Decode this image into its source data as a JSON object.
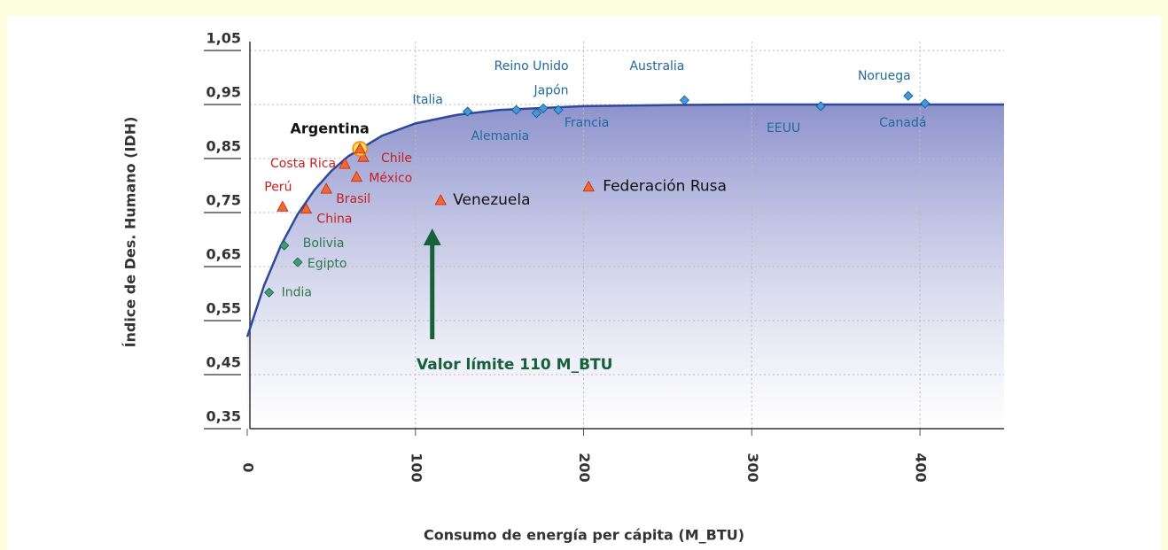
{
  "chart_data": {
    "type": "scatter",
    "xlabel": "Consumo de energía per cápita (M_BTU)",
    "ylabel": "Índice de Des. Humano (IDH)",
    "xlim": [
      0,
      450
    ],
    "ylim": [
      0.35,
      1.05
    ],
    "xticks": [
      0,
      100,
      200,
      300,
      400
    ],
    "yticks": [
      {
        "value": 0.35,
        "label": "0,35"
      },
      {
        "value": 0.45,
        "label": "0,45"
      },
      {
        "value": 0.55,
        "label": "0,55"
      },
      {
        "value": 0.65,
        "label": "0,65"
      },
      {
        "value": 0.75,
        "label": "0,75"
      },
      {
        "value": 0.85,
        "label": "0,85"
      },
      {
        "value": 0.95,
        "label": "0,95"
      },
      {
        "value": 1.05,
        "label": "1,05"
      }
    ],
    "grid": true,
    "curve": {
      "color": "#2e4a9c",
      "x": [
        0,
        10,
        20,
        30,
        40,
        50,
        60,
        80,
        100,
        125,
        150,
        200,
        250,
        300,
        450
      ],
      "values": [
        0.52,
        0.615,
        0.689,
        0.747,
        0.792,
        0.827,
        0.854,
        0.892,
        0.915,
        0.931,
        0.94,
        0.947,
        0.949,
        0.95,
        0.95
      ]
    },
    "series": [
      {
        "marker": "diamond",
        "color": "#3d9be0",
        "label_color": "#1f6a9a",
        "labels": [
          "Italia",
          "Reino Unido",
          "Alemania",
          "Japón",
          "Francia",
          "Australia",
          "EEUU",
          "Noruega",
          "Canadá"
        ],
        "x": [
          131,
          160,
          172,
          176,
          185,
          260,
          341,
          393,
          403
        ],
        "values": [
          0.937,
          0.94,
          0.934,
          0.943,
          0.94,
          0.958,
          0.947,
          0.966,
          0.952
        ]
      },
      {
        "marker": "triangle",
        "color": "#f06a2a",
        "label_color": "#c81e1e",
        "labels": [
          "Chile",
          "Costa Rica",
          "México",
          "Brasil",
          "Perú",
          "China"
        ],
        "x": [
          69,
          58,
          65,
          47,
          21,
          35
        ],
        "values": [
          0.853,
          0.84,
          0.816,
          0.794,
          0.761,
          0.757
        ]
      },
      {
        "marker": "triangle",
        "color": "#f06a2a",
        "label_color": "#111111",
        "labels": [
          "Venezuela",
          "Federación Rusa"
        ],
        "x": [
          115,
          203
        ],
        "values": [
          0.773,
          0.798
        ]
      },
      {
        "marker": "triangle",
        "color": "#f06a2a",
        "label_color": "#111111",
        "highlight": true,
        "labels": [
          "Argentina"
        ],
        "x": [
          67
        ],
        "values": [
          0.868
        ]
      },
      {
        "marker": "diamond",
        "color": "#3aa45a",
        "label_color": "#2a7a4a",
        "labels": [
          "Bolivia",
          "Egipto",
          "India"
        ],
        "x": [
          22,
          30,
          13
        ],
        "values": [
          0.689,
          0.658,
          0.602
        ]
      }
    ],
    "annotation": {
      "text": "Valor límite 110 M_BTU",
      "x": 110,
      "color": "#16603a"
    }
  }
}
